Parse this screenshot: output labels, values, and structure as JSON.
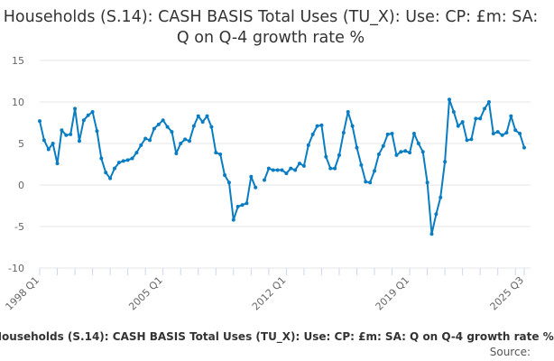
{
  "title": "Households (S.14): CASH BASIS Total Uses (TU_X): Use: CP: £m: SA: Q on Q-4 growth rate %",
  "footer": {
    "series_title": "Households (S.14): CASH BASIS Total Uses (TU_X): Use: CP: £m: SA: Q on Q-4 growth rate %",
    "source_label": "Source:"
  },
  "colors": {
    "line": "#0a7dc2",
    "grid": "#e6e6e6"
  },
  "chart_data": {
    "type": "line",
    "title": "Households (S.14): CASH BASIS Total Uses (TU_X): Use: CP: £m: SA: Q on Q-4 growth rate %",
    "xlabel": "",
    "ylabel": "",
    "ylim": [
      -10,
      15
    ],
    "y_ticks": [
      15,
      10,
      5,
      0,
      -5,
      -10
    ],
    "x_tick_labels": [
      "1998 Q1",
      "2005 Q1",
      "2012 Q1",
      "2019 Q1",
      "2025 Q3"
    ],
    "grid": "horizontal",
    "legend": "none",
    "x_start": "1998 Q1",
    "x_end": "2025 Q3",
    "frequency": "quarterly",
    "values": [
      7.7,
      5.4,
      4.3,
      5.0,
      2.6,
      6.6,
      6.0,
      6.1,
      9.2,
      5.3,
      7.8,
      8.4,
      8.8,
      6.5,
      3.2,
      1.5,
      0.8,
      2.0,
      2.7,
      2.9,
      3.0,
      3.2,
      3.9,
      4.8,
      5.6,
      5.4,
      6.8,
      7.3,
      7.8,
      7.0,
      6.4,
      3.8,
      5.0,
      5.5,
      5.3,
      7.1,
      8.3,
      7.6,
      8.3,
      7.0,
      3.9,
      3.7,
      1.2,
      0.3,
      -4.2,
      -2.6,
      -2.4,
      -2.2,
      1.0,
      -0.3,
      null,
      0.6,
      2.0,
      1.8,
      1.8,
      1.8,
      1.4,
      2.0,
      1.8,
      2.6,
      2.3,
      4.8,
      6.1,
      7.1,
      7.2,
      3.4,
      2.0,
      2.0,
      3.6,
      6.3,
      8.8,
      7.1,
      4.5,
      2.4,
      0.4,
      0.3,
      1.7,
      3.7,
      4.7,
      6.1,
      6.2,
      3.6,
      4.0,
      4.1,
      3.9,
      6.2,
      5.0,
      4.0,
      0.3,
      -5.9,
      -3.5,
      -1.5,
      2.8,
      10.3,
      8.8,
      7.1,
      7.6,
      5.4,
      5.5,
      8.0,
      8.0,
      9.2,
      10.0,
      6.2,
      6.4,
      6.0,
      6.3,
      8.3,
      6.6,
      6.2,
      4.5
    ]
  }
}
